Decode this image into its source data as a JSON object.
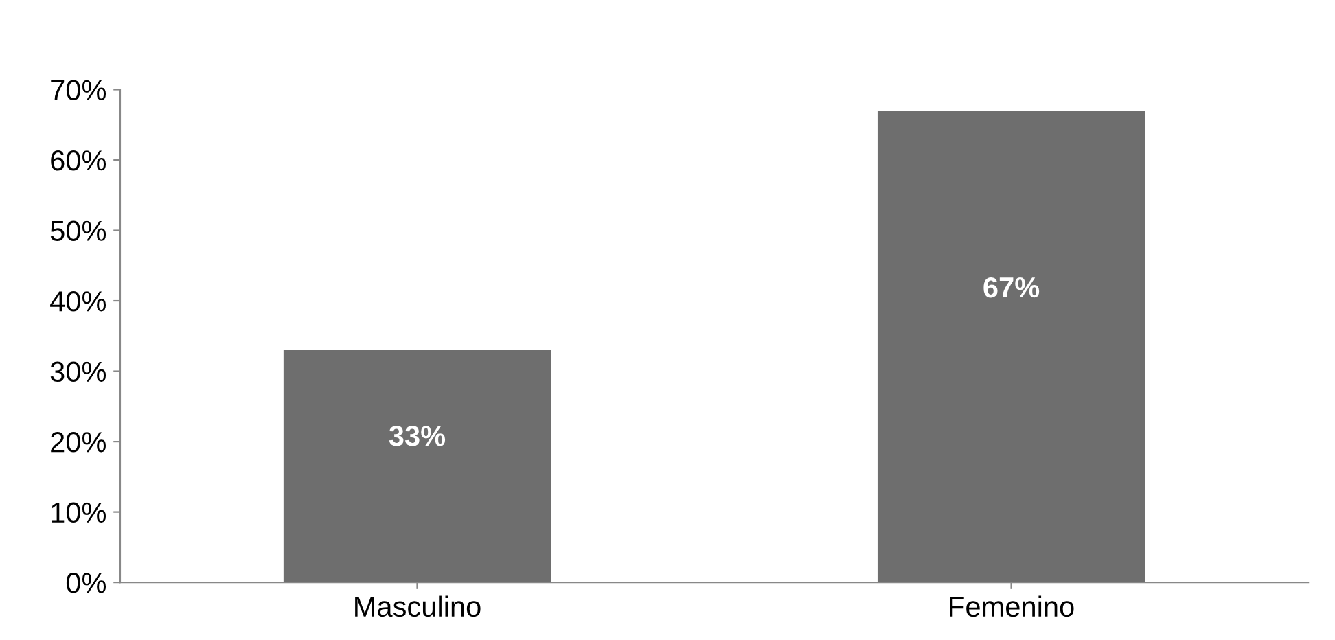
{
  "chart_data": {
    "type": "bar",
    "categories": [
      "Masculino",
      "Femenino"
    ],
    "values": [
      33,
      67
    ],
    "color": "#6e6e6e",
    "value_labels": [
      "33%",
      "67%"
    ],
    "ylim": [
      0,
      70
    ],
    "yticks": [
      {
        "value": 0,
        "label": "0%"
      },
      {
        "value": 10,
        "label": "10%"
      },
      {
        "value": 20,
        "label": "20%"
      },
      {
        "value": 30,
        "label": "30%"
      },
      {
        "value": 40,
        "label": "40%"
      },
      {
        "value": 50,
        "label": "50%"
      },
      {
        "value": 60,
        "label": "60%"
      },
      {
        "value": 70,
        "label": "70%"
      }
    ],
    "grid": false
  }
}
